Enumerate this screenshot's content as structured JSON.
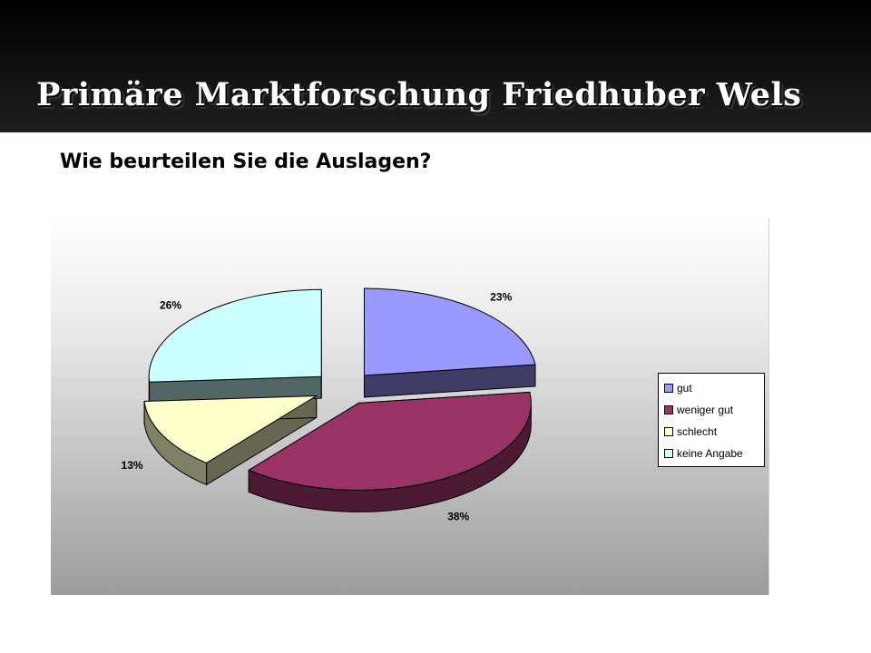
{
  "slide": {
    "title": "Primäre Marktforschung Friedhuber Wels",
    "question": "Wie beurteilen Sie die Auslagen?"
  },
  "chart_data": {
    "type": "pie",
    "style": "3d-exploded",
    "title": "",
    "legend_position": "right",
    "slices": [
      {
        "label": "gut",
        "value": 23,
        "display": "23%",
        "color": "#9999ff"
      },
      {
        "label": "weniger gut",
        "value": 38,
        "display": "38%",
        "color": "#993366"
      },
      {
        "label": "schlecht",
        "value": 13,
        "display": "13%",
        "color": "#ffffcc"
      },
      {
        "label": "keine Angabe",
        "value": 26,
        "display": "26%",
        "color": "#ccffff"
      }
    ]
  }
}
